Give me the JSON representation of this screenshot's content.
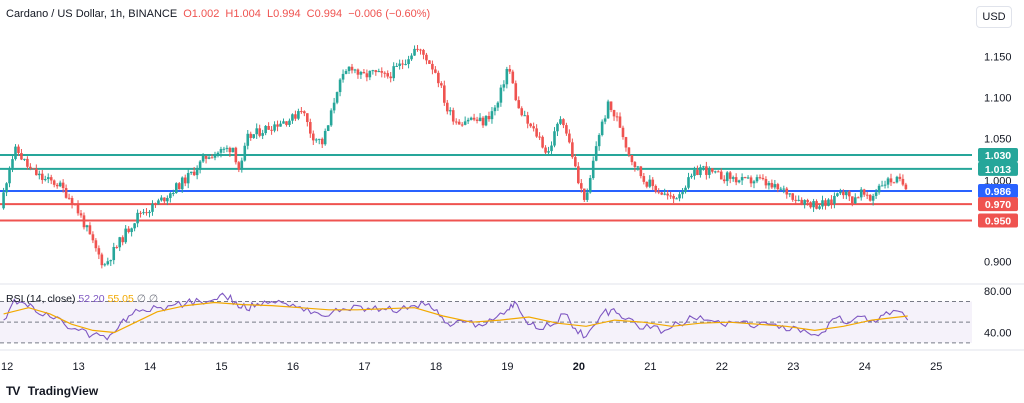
{
  "header": {
    "symbol": "Cardano / US Dollar, 1h, BINANCE",
    "open": "O1.002",
    "high": "H1.004",
    "low": "L0.994",
    "close": "C0.994",
    "change": "−0.006 (−0.60%)"
  },
  "currency_button": "USD",
  "rsi_legend": {
    "name": "RSI (14, close)",
    "rsi": "52.20",
    "ma": "55.05",
    "extra1": "∅",
    "extra2": "∅"
  },
  "brand": {
    "logo": "TV",
    "name": "TradingView"
  },
  "colors": {
    "up": "#26a69a",
    "down": "#ef5350",
    "resistance": "#26a69a",
    "pivot": "#2962ff",
    "support": "#ef5350",
    "rsi": "#7e57c2",
    "rsi_ma": "#f2a900"
  },
  "chart_data": [
    {
      "type": "candlestick",
      "x": [
        "12",
        "13",
        "14",
        "15",
        "16",
        "17",
        "18",
        "19",
        "20",
        "21",
        "22",
        "23",
        "24",
        "25"
      ],
      "yticks": [
        0.9,
        1.0,
        1.05,
        1.1,
        1.15
      ],
      "ytick_labels": [
        "0.900",
        "1.000",
        "1.050",
        "1.100",
        "1.150"
      ],
      "ylim": [
        0.875,
        1.185
      ],
      "xlim": [
        11.9,
        25.5
      ],
      "path": [
        [
          11.95,
          0.965
        ],
        [
          12.08,
          1.02
        ],
        [
          12.17,
          1.037
        ],
        [
          12.35,
          1.013
        ],
        [
          12.55,
          1.0
        ],
        [
          12.75,
          0.995
        ],
        [
          12.95,
          0.975
        ],
        [
          13.1,
          0.95
        ],
        [
          13.25,
          0.92
        ],
        [
          13.4,
          0.895
        ],
        [
          13.55,
          0.915
        ],
        [
          13.7,
          0.935
        ],
        [
          13.9,
          0.96
        ],
        [
          14.05,
          0.965
        ],
        [
          14.2,
          0.975
        ],
        [
          14.4,
          0.99
        ],
        [
          14.6,
          1.005
        ],
        [
          14.85,
          1.03
        ],
        [
          15.05,
          1.035
        ],
        [
          15.2,
          1.04
        ],
        [
          15.3,
          1.008
        ],
        [
          15.4,
          1.05
        ],
        [
          15.6,
          1.06
        ],
        [
          15.85,
          1.07
        ],
        [
          16.05,
          1.075
        ],
        [
          16.15,
          1.09
        ],
        [
          16.3,
          1.055
        ],
        [
          16.45,
          1.045
        ],
        [
          16.55,
          1.07
        ],
        [
          16.65,
          1.11
        ],
        [
          16.75,
          1.125
        ],
        [
          16.85,
          1.14
        ],
        [
          17.0,
          1.125
        ],
        [
          17.15,
          1.13
        ],
        [
          17.35,
          1.125
        ],
        [
          17.55,
          1.14
        ],
        [
          17.75,
          1.16
        ],
        [
          17.9,
          1.15
        ],
        [
          18.05,
          1.13
        ],
        [
          18.2,
          1.085
        ],
        [
          18.35,
          1.07
        ],
        [
          18.5,
          1.075
        ],
        [
          18.7,
          1.07
        ],
        [
          18.9,
          1.09
        ],
        [
          19.05,
          1.14
        ],
        [
          19.2,
          1.085
        ],
        [
          19.35,
          1.065
        ],
        [
          19.5,
          1.05
        ],
        [
          19.6,
          1.03
        ],
        [
          19.8,
          1.08
        ],
        [
          19.95,
          1.03
        ],
        [
          20.05,
          0.99
        ],
        [
          20.15,
          0.975
        ],
        [
          20.3,
          1.05
        ],
        [
          20.45,
          1.09
        ],
        [
          20.6,
          1.07
        ],
        [
          20.75,
          1.03
        ],
        [
          20.95,
          1.0
        ],
        [
          21.1,
          0.99
        ],
        [
          21.35,
          0.975
        ],
        [
          21.55,
          0.995
        ],
        [
          21.75,
          1.015
        ],
        [
          21.95,
          1.005
        ],
        [
          22.15,
          1.003
        ],
        [
          22.35,
          0.997
        ],
        [
          22.55,
          1.0
        ],
        [
          22.75,
          0.99
        ],
        [
          22.95,
          0.985
        ],
        [
          23.15,
          0.975
        ],
        [
          23.35,
          0.97
        ],
        [
          23.55,
          0.97
        ],
        [
          23.7,
          0.99
        ],
        [
          23.85,
          0.975
        ],
        [
          24.0,
          0.985
        ],
        [
          24.1,
          0.972
        ],
        [
          24.25,
          0.995
        ],
        [
          24.45,
          1.0
        ],
        [
          24.6,
          0.994
        ]
      ],
      "levels": [
        {
          "value": 1.03,
          "label": "1.030",
          "color": "resistance"
        },
        {
          "value": 1.013,
          "label": "1.013",
          "color": "resistance"
        },
        {
          "value": 0.986,
          "label": "0.986",
          "color": "pivot"
        },
        {
          "value": 0.97,
          "label": "0.970",
          "color": "support"
        },
        {
          "value": 0.95,
          "label": "0.950",
          "color": "support"
        }
      ]
    },
    {
      "type": "line",
      "name": "RSI (14, close)",
      "yticks": [
        40,
        80
      ],
      "ytick_labels": [
        "40.00",
        "80.00"
      ],
      "ylim": [
        25,
        85
      ],
      "band": [
        30,
        70
      ],
      "midline": 50,
      "rsi_path": [
        [
          11.95,
          52
        ],
        [
          12.1,
          72
        ],
        [
          12.25,
          68
        ],
        [
          12.4,
          60
        ],
        [
          12.6,
          55
        ],
        [
          12.8,
          48
        ],
        [
          13.0,
          42
        ],
        [
          13.2,
          38
        ],
        [
          13.4,
          33
        ],
        [
          13.55,
          44
        ],
        [
          13.7,
          56
        ],
        [
          13.9,
          62
        ],
        [
          14.1,
          64
        ],
        [
          14.3,
          66
        ],
        [
          14.5,
          68
        ],
        [
          14.7,
          70
        ],
        [
          14.9,
          72
        ],
        [
          15.05,
          75
        ],
        [
          15.2,
          70
        ],
        [
          15.35,
          62
        ],
        [
          15.5,
          68
        ],
        [
          15.7,
          70
        ],
        [
          15.9,
          68
        ],
        [
          16.1,
          65
        ],
        [
          16.3,
          60
        ],
        [
          16.5,
          56
        ],
        [
          16.7,
          63
        ],
        [
          16.9,
          66
        ],
        [
          17.1,
          62
        ],
        [
          17.3,
          62
        ],
        [
          17.5,
          62
        ],
        [
          17.7,
          66
        ],
        [
          17.9,
          68
        ],
        [
          18.05,
          56
        ],
        [
          18.2,
          46
        ],
        [
          18.4,
          50
        ],
        [
          18.6,
          48
        ],
        [
          18.8,
          52
        ],
        [
          19.0,
          62
        ],
        [
          19.1,
          70
        ],
        [
          19.25,
          52
        ],
        [
          19.4,
          44
        ],
        [
          19.6,
          46
        ],
        [
          19.8,
          58
        ],
        [
          19.95,
          44
        ],
        [
          20.1,
          36
        ],
        [
          20.3,
          56
        ],
        [
          20.45,
          62
        ],
        [
          20.6,
          54
        ],
        [
          20.8,
          48
        ],
        [
          21.0,
          44
        ],
        [
          21.2,
          42
        ],
        [
          21.4,
          48
        ],
        [
          21.6,
          54
        ],
        [
          21.8,
          52
        ],
        [
          22.0,
          48
        ],
        [
          22.2,
          50
        ],
        [
          22.4,
          46
        ],
        [
          22.6,
          50
        ],
        [
          22.8,
          44
        ],
        [
          23.0,
          46
        ],
        [
          23.2,
          40
        ],
        [
          23.4,
          40
        ],
        [
          23.6,
          54
        ],
        [
          23.8,
          50
        ],
        [
          24.0,
          56
        ],
        [
          24.15,
          50
        ],
        [
          24.3,
          60
        ],
        [
          24.5,
          60
        ],
        [
          24.6,
          52
        ]
      ],
      "ma_path": [
        [
          11.95,
          58
        ],
        [
          12.3,
          64
        ],
        [
          12.6,
          58
        ],
        [
          12.9,
          48
        ],
        [
          13.2,
          42
        ],
        [
          13.5,
          40
        ],
        [
          13.8,
          50
        ],
        [
          14.1,
          60
        ],
        [
          14.5,
          66
        ],
        [
          14.9,
          69
        ],
        [
          15.3,
          67
        ],
        [
          15.7,
          66
        ],
        [
          16.1,
          64
        ],
        [
          16.5,
          62
        ],
        [
          16.9,
          62
        ],
        [
          17.3,
          63
        ],
        [
          17.7,
          64
        ],
        [
          18.1,
          56
        ],
        [
          18.5,
          50
        ],
        [
          18.9,
          52
        ],
        [
          19.3,
          55
        ],
        [
          19.7,
          49
        ],
        [
          20.1,
          46
        ],
        [
          20.5,
          52
        ],
        [
          20.9,
          50
        ],
        [
          21.3,
          46
        ],
        [
          21.7,
          49
        ],
        [
          22.1,
          50
        ],
        [
          22.5,
          48
        ],
        [
          22.9,
          46
        ],
        [
          23.3,
          42
        ],
        [
          23.7,
          46
        ],
        [
          24.1,
          52
        ],
        [
          24.6,
          56
        ]
      ]
    }
  ]
}
